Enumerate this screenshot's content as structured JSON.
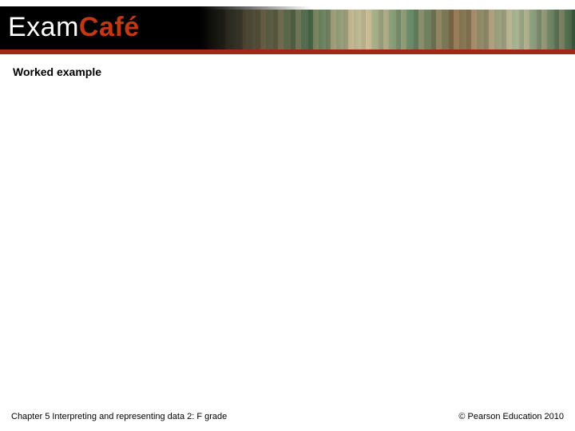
{
  "logo": {
    "part1": "Exam",
    "part2": "Café"
  },
  "heading": "Worked example",
  "footer": {
    "left": "Chapter 5 Interpreting and representing data 2: F grade",
    "right": "© Pearson Education 2010"
  },
  "colors": {
    "accent_red": "#c23815",
    "bar_red": "#9e2a12",
    "black": "#000000",
    "white": "#ffffff"
  }
}
